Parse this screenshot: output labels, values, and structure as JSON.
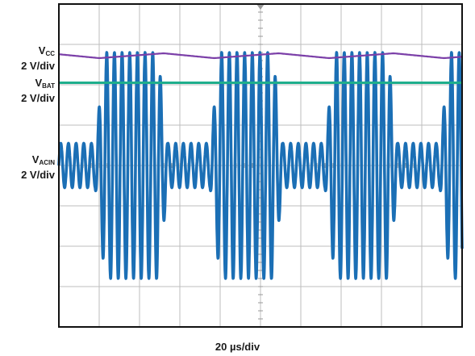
{
  "chart_data": {
    "type": "line",
    "title": "",
    "xlabel": "20 µs/div",
    "divisions": {
      "x": 10,
      "y": 8
    },
    "grid": true,
    "channels": [
      {
        "name_main": "V",
        "name_sub": "CC",
        "scale": "2 V/div",
        "color": "#7b3fa8",
        "level_div": 6.72,
        "ripple_div": 0.12,
        "period_div": 2.85
      },
      {
        "name_main": "V",
        "name_sub": "BAT",
        "scale": "2 V/div",
        "color": "#1fae8c",
        "level_div": 6.05
      },
      {
        "name_main": "V",
        "name_sub": "ACIN",
        "scale": "2 V/div",
        "color": "#1b6fb5",
        "center_div": 4.0,
        "burst_period_div": 2.85,
        "burst_width_div": 1.8,
        "burst_amplitude_div": 2.8,
        "idle_amplitude_div": 0.55,
        "cycle_div": 0.19
      }
    ]
  }
}
